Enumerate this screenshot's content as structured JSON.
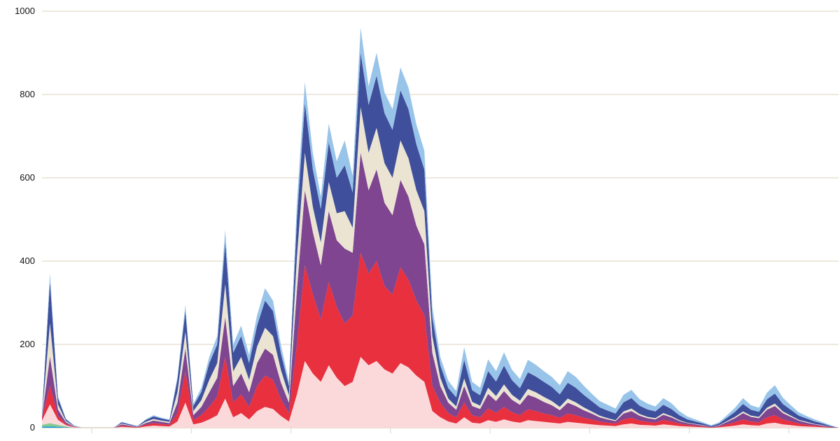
{
  "chart_data": {
    "type": "area",
    "stacked": true,
    "title": "",
    "xlabel": "",
    "ylabel": "",
    "ylim": [
      0,
      1000
    ],
    "y_ticks": [
      0,
      200,
      400,
      600,
      800,
      1000
    ],
    "x_tick_count": 8,
    "grid": true,
    "legend": "none",
    "x": [
      0,
      2,
      4,
      6,
      8,
      10,
      12,
      14,
      16,
      18,
      20,
      22,
      24,
      26,
      28,
      30,
      32,
      34,
      36,
      38,
      40,
      42,
      44,
      46,
      48,
      50,
      52,
      54,
      56,
      58,
      60,
      62,
      64,
      66,
      68,
      70,
      72,
      74,
      76,
      78,
      80,
      82,
      84,
      86,
      88,
      90,
      92,
      94,
      96,
      98,
      100,
      102,
      104,
      106,
      108,
      110,
      112,
      114,
      116,
      118,
      120,
      122,
      124,
      126,
      128,
      130,
      132,
      134,
      136,
      138,
      140,
      142,
      144,
      146,
      148,
      150,
      152,
      154,
      156,
      158,
      160,
      162,
      164,
      166,
      168,
      170,
      172,
      174,
      176,
      178,
      180,
      182,
      184,
      186,
      188,
      190,
      192,
      194,
      196,
      198,
      200
    ],
    "series": [
      {
        "color": "#0a95d6",
        "values": [
          2,
          3,
          2,
          1,
          0,
          0,
          0,
          0,
          0,
          0,
          0,
          0,
          0,
          0,
          0,
          0,
          0,
          0,
          0,
          0,
          0,
          0,
          0,
          0,
          0,
          0,
          0,
          0,
          0,
          0,
          0,
          0,
          0,
          0,
          0,
          0,
          0,
          0,
          0,
          0,
          0,
          0,
          0,
          0,
          0,
          0,
          0,
          0,
          0,
          0,
          0,
          0,
          0,
          0,
          0,
          0,
          0,
          0,
          0,
          0,
          0,
          0,
          0,
          0,
          0,
          0,
          0,
          0,
          0,
          0,
          0,
          0,
          0,
          0,
          0,
          0,
          0,
          0,
          0,
          0,
          0,
          0,
          0,
          0,
          0,
          0,
          0,
          0,
          0,
          0,
          0,
          0,
          0,
          0,
          0,
          0,
          0,
          0,
          0,
          0,
          0
        ]
      },
      {
        "color": "#86c993",
        "values": [
          5,
          8,
          5,
          2,
          0,
          0,
          0,
          0,
          0,
          0,
          0,
          0,
          0,
          0,
          0,
          0,
          0,
          0,
          0,
          0,
          0,
          0,
          0,
          0,
          0,
          0,
          0,
          0,
          0,
          0,
          0,
          0,
          0,
          0,
          0,
          0,
          0,
          0,
          0,
          0,
          0,
          0,
          0,
          0,
          0,
          0,
          0,
          0,
          0,
          0,
          0,
          0,
          0,
          0,
          0,
          0,
          0,
          0,
          0,
          0,
          0,
          0,
          0,
          0,
          0,
          0,
          0,
          0,
          0,
          0,
          0,
          0,
          0,
          0,
          0,
          0,
          0,
          0,
          0,
          0,
          0,
          0,
          0,
          0,
          0,
          0,
          0,
          0,
          0,
          0,
          0,
          0,
          0,
          0,
          0,
          0,
          0,
          0,
          0,
          0,
          0
        ]
      },
      {
        "color": "#fbd9da",
        "values": [
          10,
          45,
          12,
          3,
          1,
          0,
          0,
          0,
          0,
          0,
          2,
          1,
          0,
          3,
          5,
          4,
          3,
          15,
          60,
          8,
          12,
          20,
          30,
          70,
          25,
          35,
          20,
          40,
          50,
          45,
          28,
          15,
          80,
          160,
          130,
          110,
          150,
          120,
          100,
          110,
          170,
          150,
          160,
          140,
          130,
          155,
          145,
          125,
          110,
          40,
          25,
          15,
          10,
          25,
          12,
          10,
          18,
          14,
          20,
          15,
          12,
          18,
          16,
          14,
          12,
          10,
          14,
          12,
          10,
          8,
          6,
          5,
          4,
          8,
          10,
          7,
          6,
          5,
          8,
          6,
          4,
          3,
          2,
          1,
          0,
          1,
          3,
          5,
          8,
          6,
          5,
          10,
          12,
          8,
          6,
          4,
          3,
          2,
          1,
          0,
          0
        ]
      },
      {
        "color": "#e8303e",
        "values": [
          5,
          45,
          10,
          3,
          1,
          0,
          0,
          0,
          0,
          0,
          3,
          2,
          1,
          4,
          6,
          5,
          4,
          20,
          75,
          10,
          18,
          30,
          45,
          100,
          35,
          45,
          30,
          60,
          75,
          70,
          40,
          20,
          120,
          230,
          190,
          150,
          200,
          170,
          150,
          160,
          250,
          220,
          240,
          200,
          190,
          230,
          210,
          180,
          160,
          60,
          35,
          20,
          15,
          35,
          18,
          15,
          28,
          22,
          30,
          22,
          18,
          26,
          24,
          20,
          18,
          14,
          20,
          18,
          14,
          12,
          9,
          7,
          6,
          12,
          14,
          10,
          8,
          7,
          11,
          9,
          6,
          4,
          3,
          2,
          1,
          2,
          5,
          8,
          12,
          9,
          8,
          15,
          18,
          12,
          9,
          6,
          4,
          3,
          2,
          1,
          0
        ]
      },
      {
        "color": "#7f4590",
        "values": [
          4,
          70,
          15,
          4,
          1,
          0,
          0,
          0,
          0,
          0,
          3,
          2,
          1,
          4,
          6,
          5,
          4,
          25,
          55,
          12,
          20,
          35,
          45,
          95,
          40,
          50,
          35,
          55,
          65,
          60,
          40,
          25,
          130,
          180,
          150,
          130,
          170,
          160,
          180,
          150,
          240,
          200,
          220,
          200,
          190,
          210,
          200,
          180,
          170,
          80,
          40,
          25,
          18,
          40,
          22,
          20,
          35,
          28,
          38,
          30,
          25,
          35,
          32,
          28,
          24,
          18,
          26,
          22,
          18,
          14,
          10,
          8,
          6,
          14,
          16,
          12,
          9,
          8,
          12,
          10,
          6,
          4,
          3,
          2,
          1,
          2,
          6,
          10,
          15,
          11,
          10,
          18,
          22,
          15,
          11,
          7,
          5,
          3,
          2,
          1,
          0
        ]
      },
      {
        "color": "#ebe4d3",
        "values": [
          3,
          80,
          12,
          3,
          1,
          0,
          0,
          0,
          0,
          0,
          2,
          1,
          1,
          3,
          4,
          3,
          3,
          25,
          40,
          10,
          16,
          30,
          35,
          80,
          35,
          40,
          30,
          40,
          50,
          45,
          30,
          18,
          80,
          90,
          60,
          55,
          70,
          65,
          90,
          60,
          110,
          90,
          100,
          95,
          90,
          95,
          92,
          85,
          80,
          40,
          20,
          10,
          8,
          18,
          10,
          8,
          15,
          12,
          16,
          12,
          10,
          14,
          13,
          12,
          10,
          8,
          10,
          9,
          7,
          5,
          4,
          3,
          2,
          5,
          6,
          4,
          3,
          3,
          4,
          3,
          2,
          1,
          1,
          1,
          0,
          1,
          2,
          3,
          4,
          3,
          3,
          5,
          6,
          4,
          3,
          2,
          2,
          1,
          1,
          0,
          0
        ]
      },
      {
        "color": "#3f4f9b",
        "values": [
          3,
          100,
          15,
          4,
          1,
          0,
          0,
          0,
          0,
          0,
          3,
          2,
          1,
          4,
          6,
          5,
          4,
          30,
          50,
          12,
          20,
          40,
          45,
          100,
          45,
          50,
          40,
          50,
          65,
          60,
          40,
          22,
          90,
          120,
          90,
          80,
          95,
          85,
          110,
          85,
          130,
          115,
          125,
          120,
          115,
          120,
          118,
          110,
          100,
          45,
          30,
          25,
          22,
          45,
          28,
          25,
          40,
          35,
          45,
          35,
          30,
          40,
          38,
          36,
          34,
          30,
          38,
          35,
          30,
          25,
          20,
          18,
          16,
          22,
          25,
          20,
          18,
          16,
          20,
          17,
          12,
          8,
          6,
          4,
          2,
          4,
          8,
          12,
          18,
          14,
          12,
          20,
          24,
          18,
          14,
          10,
          8,
          6,
          4,
          2,
          0
        ]
      },
      {
        "color": "#99c4ea",
        "values": [
          3,
          20,
          5,
          2,
          1,
          0,
          0,
          0,
          0,
          0,
          1,
          1,
          0,
          2,
          3,
          2,
          2,
          8,
          15,
          5,
          10,
          15,
          20,
          30,
          20,
          25,
          20,
          25,
          30,
          25,
          20,
          10,
          40,
          50,
          40,
          30,
          45,
          40,
          60,
          40,
          60,
          45,
          55,
          50,
          50,
          55,
          52,
          48,
          45,
          25,
          20,
          18,
          15,
          30,
          20,
          18,
          28,
          25,
          32,
          25,
          22,
          30,
          28,
          26,
          24,
          22,
          28,
          26,
          22,
          18,
          15,
          14,
          12,
          18,
          20,
          16,
          14,
          12,
          16,
          14,
          10,
          7,
          5,
          3,
          2,
          3,
          6,
          10,
          14,
          11,
          10,
          16,
          20,
          15,
          11,
          8,
          6,
          5,
          3,
          2,
          0
        ]
      }
    ]
  }
}
